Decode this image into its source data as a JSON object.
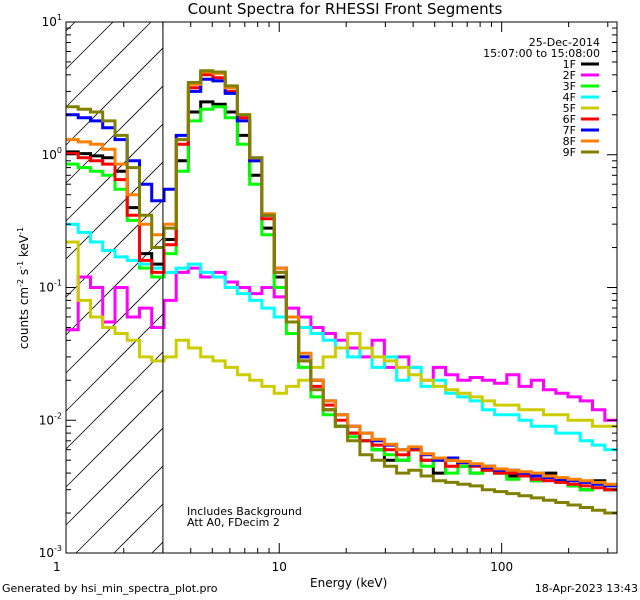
{
  "chart_data": {
    "type": "line",
    "title": "Count Spectra for RHESSI Front Segments",
    "xlabel": "Energy (keV)",
    "ylabel_base": "counts cm",
    "ylabel_sup1": "-2",
    "ylabel_mid": " s",
    "ylabel_sup2": "-1",
    "ylabel_end": " keV",
    "ylabel_sup3": "-1",
    "x_scale": "log",
    "y_scale": "log",
    "xlim": [
      1.1,
      330
    ],
    "ylim": [
      0.001,
      10
    ],
    "x_ticks": [
      {
        "value": 1,
        "label": "1"
      },
      {
        "value": 10,
        "label": "10"
      },
      {
        "value": 100,
        "label": "100"
      }
    ],
    "y_ticks": [
      {
        "value": 0.001,
        "base": "10",
        "exp": "-3"
      },
      {
        "value": 0.01,
        "base": "10",
        "exp": "-2"
      },
      {
        "value": 0.1,
        "base": "10",
        "exp": "-1"
      },
      {
        "value": 1,
        "base": "10",
        "exp": "0"
      },
      {
        "value": 10,
        "base": "10",
        "exp": "1"
      }
    ],
    "hatched_region": {
      "x_from": 1.1,
      "x_to": 3
    },
    "annotations": {
      "date": "25-Dec-2014",
      "time": "15:07:00 to 15:08:00",
      "background": "Includes Background",
      "attenuator": "Att A0, FDecim 2"
    },
    "legend_position": "top-right",
    "series": [
      {
        "name": "1F",
        "color": "#000000",
        "values": [
          1.05,
          1.02,
          0.98,
          0.95,
          0.75,
          0.4,
          0.18,
          0.15,
          0.23,
          0.9,
          2.1,
          2.5,
          2.4,
          2.1,
          1.4,
          0.7,
          0.28,
          0.12,
          0.055,
          0.03,
          0.02,
          0.012,
          0.009,
          0.008,
          0.007,
          0.006,
          0.005,
          0.005,
          0.006,
          0.005,
          0.004,
          0.005,
          0.0045,
          0.004,
          0.0045,
          0.004,
          0.0038,
          0.004,
          0.0035,
          0.004,
          0.0035,
          0.0032,
          0.003,
          0.0035,
          0.003
        ]
      },
      {
        "name": "2F",
        "color": "#ff00ff",
        "values": [
          0.048,
          0.12,
          0.1,
          0.055,
          0.1,
          0.06,
          0.07,
          0.05,
          0.08,
          0.13,
          0.14,
          0.12,
          0.13,
          0.11,
          0.1,
          0.09,
          0.1,
          0.085,
          0.07,
          0.06,
          0.05,
          0.045,
          0.04,
          0.035,
          0.03,
          0.04,
          0.025,
          0.03,
          0.025,
          0.02,
          0.025,
          0.022,
          0.02,
          0.021,
          0.02,
          0.019,
          0.022,
          0.018,
          0.02,
          0.017,
          0.016,
          0.015,
          0.014,
          0.012,
          0.01
        ]
      },
      {
        "name": "3F",
        "color": "#00ff00",
        "values": [
          0.85,
          0.8,
          0.75,
          0.7,
          0.55,
          0.32,
          0.14,
          0.12,
          0.18,
          0.75,
          1.8,
          2.2,
          2.3,
          1.9,
          1.2,
          0.6,
          0.25,
          0.1,
          0.045,
          0.025,
          0.015,
          0.011,
          0.009,
          0.0075,
          0.007,
          0.006,
          0.0055,
          0.005,
          0.006,
          0.0045,
          0.005,
          0.004,
          0.0045,
          0.004,
          0.0042,
          0.004,
          0.0036,
          0.004,
          0.0035,
          0.0038,
          0.0034,
          0.0032,
          0.003,
          0.0033,
          0.003
        ]
      },
      {
        "name": "4F",
        "color": "#00ffff",
        "values": [
          0.3,
          0.26,
          0.22,
          0.19,
          0.17,
          0.16,
          0.15,
          0.14,
          0.13,
          0.14,
          0.15,
          0.13,
          0.12,
          0.1,
          0.09,
          0.08,
          0.07,
          0.06,
          0.055,
          0.05,
          0.045,
          0.04,
          0.035,
          0.03,
          0.035,
          0.025,
          0.03,
          0.02,
          0.025,
          0.018,
          0.02,
          0.016,
          0.015,
          0.014,
          0.012,
          0.011,
          0.011,
          0.01,
          0.009,
          0.009,
          0.008,
          0.008,
          0.007,
          0.0065,
          0.006
        ]
      },
      {
        "name": "5F",
        "color": "#cccc00",
        "values": [
          0.22,
          0.08,
          0.06,
          0.05,
          0.045,
          0.04,
          0.03,
          0.028,
          0.03,
          0.04,
          0.035,
          0.03,
          0.028,
          0.025,
          0.022,
          0.02,
          0.018,
          0.016,
          0.018,
          0.02,
          0.025,
          0.03,
          0.035,
          0.045,
          0.035,
          0.03,
          0.028,
          0.025,
          0.022,
          0.02,
          0.018,
          0.017,
          0.016,
          0.015,
          0.014,
          0.013,
          0.013,
          0.012,
          0.012,
          0.011,
          0.011,
          0.01,
          0.01,
          0.009,
          0.009
        ]
      },
      {
        "name": "6F",
        "color": "#ff0000",
        "values": [
          1.02,
          0.95,
          0.9,
          0.85,
          0.65,
          0.35,
          0.16,
          0.13,
          0.21,
          1.2,
          3.2,
          4.0,
          3.8,
          3.0,
          1.9,
          0.9,
          0.33,
          0.13,
          0.055,
          0.028,
          0.018,
          0.013,
          0.01,
          0.008,
          0.007,
          0.0065,
          0.006,
          0.0055,
          0.006,
          0.005,
          0.005,
          0.0045,
          0.0048,
          0.0045,
          0.0042,
          0.004,
          0.004,
          0.0038,
          0.0036,
          0.0035,
          0.0034,
          0.0033,
          0.0032,
          0.0031,
          0.003
        ]
      },
      {
        "name": "7F",
        "color": "#0000ff",
        "values": [
          2.0,
          1.9,
          1.8,
          1.6,
          1.3,
          0.9,
          0.6,
          0.45,
          0.55,
          1.4,
          3.0,
          3.7,
          3.6,
          2.9,
          1.8,
          0.9,
          0.35,
          0.14,
          0.06,
          0.03,
          0.02,
          0.014,
          0.011,
          0.009,
          0.008,
          0.007,
          0.0065,
          0.006,
          0.0062,
          0.0055,
          0.005,
          0.0052,
          0.0048,
          0.0046,
          0.0044,
          0.0042,
          0.0042,
          0.004,
          0.0038,
          0.0037,
          0.0036,
          0.0035,
          0.0034,
          0.0033,
          0.0032
        ]
      },
      {
        "name": "8F",
        "color": "#ff8000",
        "values": [
          1.3,
          1.25,
          1.2,
          1.1,
          0.85,
          0.5,
          0.3,
          0.25,
          0.3,
          1.3,
          3.4,
          4.2,
          4.1,
          3.2,
          2.0,
          0.95,
          0.36,
          0.14,
          0.06,
          0.032,
          0.02,
          0.014,
          0.011,
          0.009,
          0.008,
          0.0072,
          0.0066,
          0.006,
          0.0063,
          0.0056,
          0.0052,
          0.005,
          0.0049,
          0.0047,
          0.0045,
          0.0043,
          0.0042,
          0.0041,
          0.004,
          0.0038,
          0.0037,
          0.0036,
          0.0035,
          0.0034,
          0.0033
        ]
      },
      {
        "name": "9F",
        "color": "#808000",
        "values": [
          2.3,
          2.2,
          2.1,
          1.8,
          1.4,
          0.8,
          0.35,
          0.2,
          0.28,
          1.3,
          3.5,
          4.3,
          4.2,
          3.3,
          2.0,
          0.95,
          0.35,
          0.13,
          0.055,
          0.028,
          0.017,
          0.012,
          0.009,
          0.007,
          0.0055,
          0.005,
          0.0045,
          0.004,
          0.0042,
          0.0038,
          0.0035,
          0.0034,
          0.0033,
          0.0032,
          0.003,
          0.0029,
          0.0028,
          0.0027,
          0.0026,
          0.0025,
          0.0024,
          0.0023,
          0.0022,
          0.0021,
          0.002
        ]
      }
    ]
  },
  "footer": {
    "left": "Generated by hsi_min_spectra_plot.pro",
    "right": "18-Apr-2023 13:43"
  }
}
